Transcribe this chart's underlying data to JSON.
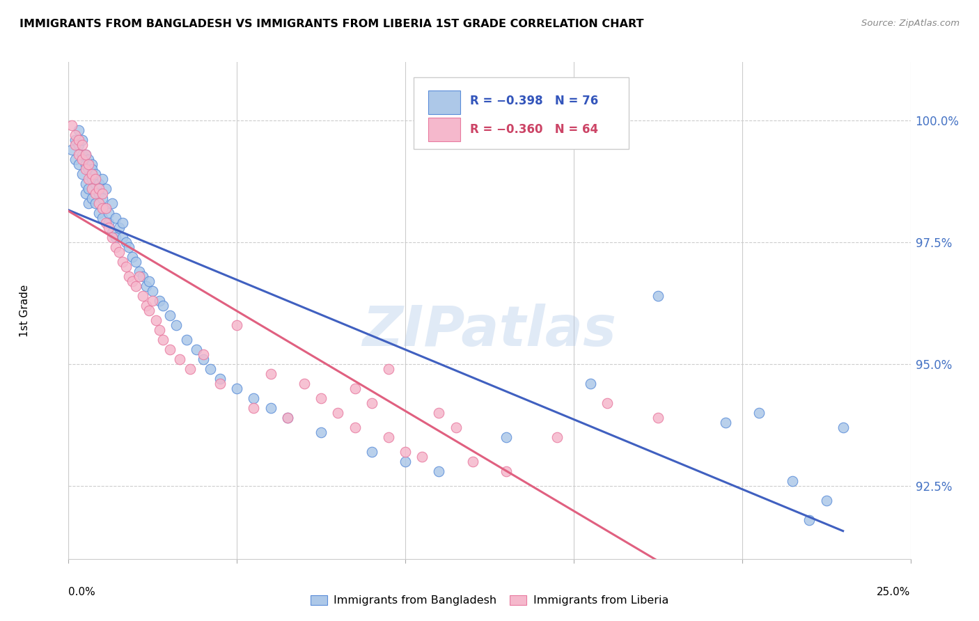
{
  "title": "IMMIGRANTS FROM BANGLADESH VS IMMIGRANTS FROM LIBERIA 1ST GRADE CORRELATION CHART",
  "source": "Source: ZipAtlas.com",
  "ylabel": "1st Grade",
  "y_ticks": [
    92.5,
    95.0,
    97.5,
    100.0
  ],
  "y_tick_labels": [
    "92.5%",
    "95.0%",
    "97.5%",
    "100.0%"
  ],
  "xlim": [
    0.0,
    0.25
  ],
  "ylim": [
    91.0,
    101.2
  ],
  "legend_blue_r": "−0.398",
  "legend_blue_n": "76",
  "legend_pink_r": "−0.360",
  "legend_pink_n": "64",
  "blue_fill": "#adc8e8",
  "pink_fill": "#f5b8cc",
  "blue_edge": "#5b8dd9",
  "pink_edge": "#e87aa0",
  "blue_line": "#4060c0",
  "pink_line": "#e06080",
  "watermark": "ZIPatlas",
  "blue_scatter_x": [
    0.001,
    0.002,
    0.002,
    0.003,
    0.003,
    0.003,
    0.004,
    0.004,
    0.004,
    0.005,
    0.005,
    0.005,
    0.005,
    0.006,
    0.006,
    0.006,
    0.006,
    0.007,
    0.007,
    0.007,
    0.007,
    0.008,
    0.008,
    0.008,
    0.009,
    0.009,
    0.009,
    0.01,
    0.01,
    0.01,
    0.011,
    0.011,
    0.012,
    0.012,
    0.013,
    0.013,
    0.014,
    0.014,
    0.015,
    0.016,
    0.016,
    0.017,
    0.018,
    0.019,
    0.02,
    0.021,
    0.022,
    0.023,
    0.024,
    0.025,
    0.027,
    0.028,
    0.03,
    0.032,
    0.035,
    0.038,
    0.04,
    0.042,
    0.045,
    0.05,
    0.055,
    0.06,
    0.065,
    0.075,
    0.09,
    0.1,
    0.11,
    0.13,
    0.155,
    0.175,
    0.195,
    0.205,
    0.215,
    0.22,
    0.225,
    0.23
  ],
  "blue_scatter_y": [
    99.4,
    99.6,
    99.2,
    99.5,
    99.1,
    99.8,
    99.3,
    98.9,
    99.6,
    99.1,
    98.7,
    99.3,
    98.5,
    99.0,
    98.6,
    99.2,
    98.3,
    98.8,
    99.1,
    98.4,
    99.0,
    98.7,
    98.3,
    98.9,
    98.5,
    98.1,
    98.7,
    98.4,
    98.8,
    98.0,
    98.2,
    98.6,
    98.1,
    97.9,
    98.3,
    97.7,
    98.0,
    97.6,
    97.8,
    97.6,
    97.9,
    97.5,
    97.4,
    97.2,
    97.1,
    96.9,
    96.8,
    96.6,
    96.7,
    96.5,
    96.3,
    96.2,
    96.0,
    95.8,
    95.5,
    95.3,
    95.1,
    94.9,
    94.7,
    94.5,
    94.3,
    94.1,
    93.9,
    93.6,
    93.2,
    93.0,
    92.8,
    93.5,
    94.6,
    96.4,
    93.8,
    94.0,
    92.6,
    91.8,
    92.2,
    93.7
  ],
  "pink_scatter_x": [
    0.001,
    0.002,
    0.002,
    0.003,
    0.003,
    0.004,
    0.004,
    0.005,
    0.005,
    0.006,
    0.006,
    0.007,
    0.007,
    0.008,
    0.008,
    0.009,
    0.009,
    0.01,
    0.01,
    0.011,
    0.011,
    0.012,
    0.013,
    0.014,
    0.015,
    0.016,
    0.017,
    0.018,
    0.019,
    0.02,
    0.021,
    0.022,
    0.023,
    0.024,
    0.025,
    0.026,
    0.027,
    0.028,
    0.03,
    0.033,
    0.036,
    0.04,
    0.045,
    0.05,
    0.055,
    0.06,
    0.065,
    0.07,
    0.075,
    0.08,
    0.085,
    0.09,
    0.095,
    0.1,
    0.11,
    0.12,
    0.13,
    0.145,
    0.16,
    0.175,
    0.085,
    0.095,
    0.105,
    0.115
  ],
  "pink_scatter_y": [
    99.9,
    99.5,
    99.7,
    99.3,
    99.6,
    99.2,
    99.5,
    99.0,
    99.3,
    98.8,
    99.1,
    98.6,
    98.9,
    98.5,
    98.8,
    98.3,
    98.6,
    98.2,
    98.5,
    97.9,
    98.2,
    97.8,
    97.6,
    97.4,
    97.3,
    97.1,
    97.0,
    96.8,
    96.7,
    96.6,
    96.8,
    96.4,
    96.2,
    96.1,
    96.3,
    95.9,
    95.7,
    95.5,
    95.3,
    95.1,
    94.9,
    95.2,
    94.6,
    95.8,
    94.1,
    94.8,
    93.9,
    94.6,
    94.3,
    94.0,
    93.7,
    94.2,
    93.5,
    93.2,
    94.0,
    93.0,
    92.8,
    93.5,
    94.2,
    93.9,
    94.5,
    94.9,
    93.1,
    93.7
  ]
}
